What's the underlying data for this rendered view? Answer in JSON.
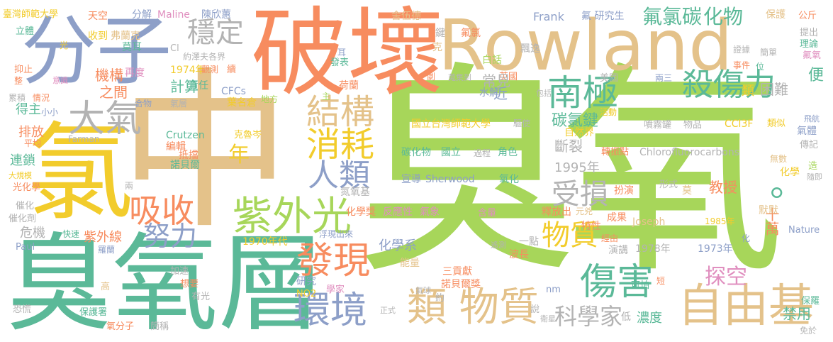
{
  "colors": {
    "green": "#a7d65a",
    "teal": "#5bb998",
    "orange": "#f78c5f",
    "tan": "#e4c28a",
    "blue": "#8d9fc8",
    "pink": "#e08fbf",
    "yellow": "#f2cc2c",
    "gray": "#b3b3b3"
  },
  "words": [
    {
      "text": "臭氧",
      "color": "green"
    },
    {
      "text": "中",
      "color": "tan"
    },
    {
      "text": "臭氧層",
      "color": "teal"
    },
    {
      "text": "氯",
      "color": "yellow"
    },
    {
      "text": "破壞",
      "color": "orange"
    },
    {
      "text": "Rowland",
      "color": "tan"
    },
    {
      "text": "分子",
      "color": "blue"
    },
    {
      "text": "自由基",
      "color": "tan"
    },
    {
      "text": "類 物質",
      "color": "tan"
    },
    {
      "text": "紫外光",
      "color": "green"
    },
    {
      "text": "大氣",
      "color": "gray"
    },
    {
      "text": "發現",
      "color": "orange"
    },
    {
      "text": "環境",
      "color": "blue"
    },
    {
      "text": "傷害",
      "color": "teal"
    },
    {
      "text": "南極",
      "color": "teal"
    },
    {
      "text": "殺傷力",
      "color": "teal"
    },
    {
      "text": "消耗",
      "color": "yellow"
    },
    {
      "text": "結構",
      "color": "tan"
    },
    {
      "text": "人類",
      "color": "blue"
    },
    {
      "text": "吸收",
      "color": "orange"
    },
    {
      "text": "努力",
      "color": "blue"
    },
    {
      "text": "穩定",
      "color": "gray"
    },
    {
      "text": "氟氯碳",
      "color": "teal"
    },
    {
      "text": "化物",
      "color": "teal"
    },
    {
      "text": "受損",
      "color": "gray"
    },
    {
      "text": "物質",
      "color": "yellow"
    },
    {
      "text": "探空",
      "color": "pink"
    },
    {
      "text": "科學家",
      "color": "gray"
    },
    {
      "text": "年",
      "color": "yellow"
    },
    {
      "text": "。",
      "color": "teal"
    },
    {
      "text": "十萬",
      "color": "orange"
    },
    {
      "text": "臺灣師範大學",
      "color": "yellow"
    },
    {
      "text": "天空",
      "color": "orange"
    },
    {
      "text": "分解",
      "color": "blue"
    },
    {
      "text": "Maline",
      "color": "pink"
    },
    {
      "text": "陳欣蕙",
      "color": "blue"
    },
    {
      "text": "舍伍德",
      "color": "tan"
    },
    {
      "text": "Frank",
      "color": "blue"
    },
    {
      "text": "氟 研究生",
      "color": "blue"
    },
    {
      "text": "保護",
      "color": "tan"
    },
    {
      "text": "公斤",
      "color": "orange"
    },
    {
      "text": "收到",
      "color": "yellow"
    },
    {
      "text": "弗蘭克",
      "color": "tan"
    },
    {
      "text": "莫耳",
      "color": "teal"
    },
    {
      "text": "Cl",
      "color": "gray"
    },
    {
      "text": "約澤夫各界",
      "color": "gray"
    },
    {
      "text": "耳",
      "color": "blue"
    },
    {
      "text": "鍵",
      "color": "gray"
    },
    {
      "text": "氟氯",
      "color": "orange"
    },
    {
      "text": "白話",
      "color": "green"
    },
    {
      "text": "飄逸",
      "color": "gray"
    },
    {
      "text": "提出",
      "color": "gray"
    },
    {
      "text": "理論",
      "color": "teal"
    },
    {
      "text": "證據",
      "color": "gray"
    },
    {
      "text": "簡單",
      "color": "gray"
    },
    {
      "text": "氟氧",
      "color": "pink"
    },
    {
      "text": "事件",
      "color": "orange"
    },
    {
      "text": "位",
      "color": "teal"
    },
    {
      "text": "1974年",
      "color": "yellow"
    },
    {
      "text": "觀測",
      "color": "orange"
    },
    {
      "text": "機構",
      "color": "orange"
    },
    {
      "text": "責任",
      "color": "teal"
    },
    {
      "text": "再度",
      "color": "pink"
    },
    {
      "text": "計算",
      "color": "teal"
    },
    {
      "text": "之間",
      "color": "orange"
    },
    {
      "text": "CFCs",
      "color": "blue"
    },
    {
      "text": "葉名倉",
      "color": "yellow"
    },
    {
      "text": "地方",
      "color": "green"
    },
    {
      "text": "荷蘭",
      "color": "orange"
    },
    {
      "text": "英國",
      "color": "orange"
    },
    {
      "text": "美國",
      "color": "gray"
    },
    {
      "text": "兩三",
      "color": "blue"
    },
    {
      "text": "常見",
      "color": "gray"
    },
    {
      "text": "近",
      "color": "blue"
    },
    {
      "text": "水解",
      "color": "blue"
    },
    {
      "text": "碳氯鍵",
      "color": "teal"
    },
    {
      "text": "類",
      "color": "yellow"
    },
    {
      "text": "困難",
      "color": "gray"
    },
    {
      "text": "便",
      "color": "teal"
    },
    {
      "text": "國立台灣師範大學",
      "color": "yellow"
    },
    {
      "text": "驅使",
      "color": "gray"
    },
    {
      "text": "自然界",
      "color": "yellow"
    },
    {
      "text": "活動",
      "color": "yellow"
    },
    {
      "text": "噴霧罐",
      "color": "gray"
    },
    {
      "text": "物品",
      "color": "gray"
    },
    {
      "text": "CCl3F",
      "color": "yellow"
    },
    {
      "text": "類似",
      "color": "yellow"
    },
    {
      "text": "氣體",
      "color": "blue"
    },
    {
      "text": "傳記",
      "color": "gray"
    },
    {
      "text": "飛航",
      "color": "blue"
    },
    {
      "text": "碳化物",
      "color": "teal"
    },
    {
      "text": "國立",
      "color": "teal"
    },
    {
      "text": "過程",
      "color": "gray"
    },
    {
      "text": "角色",
      "color": "teal"
    },
    {
      "text": "斷裂",
      "color": "gray"
    },
    {
      "text": "轉振點",
      "color": "orange"
    },
    {
      "text": "Chlorofluorocarbons",
      "color": "gray"
    },
    {
      "text": "宣導",
      "color": "blue"
    },
    {
      "text": "Sherwood",
      "color": "blue"
    },
    {
      "text": "氧化",
      "color": "teal"
    },
    {
      "text": "1995年",
      "color": "gray"
    },
    {
      "text": "無數",
      "color": "tan"
    },
    {
      "text": "造",
      "color": "green"
    },
    {
      "text": "隨即",
      "color": "gray"
    },
    {
      "text": "化學",
      "color": "yellow"
    },
    {
      "text": "教授",
      "color": "orange"
    },
    {
      "text": "默默",
      "color": "tan"
    },
    {
      "text": "扮演",
      "color": "orange"
    },
    {
      "text": "形式",
      "color": "gray"
    },
    {
      "text": "莫",
      "color": "tan"
    },
    {
      "text": "化學獎",
      "color": "orange"
    },
    {
      "text": "反應性",
      "color": "pink"
    },
    {
      "text": "氣象",
      "color": "pink"
    },
    {
      "text": "含量",
      "color": "pink"
    },
    {
      "text": "釋放出",
      "color": "orange"
    },
    {
      "text": "元兇",
      "color": "tan"
    },
    {
      "text": "成果",
      "color": "orange"
    },
    {
      "text": "特性",
      "color": "orange"
    },
    {
      "text": "Joseph",
      "color": "tan"
    },
    {
      "text": "1985年",
      "color": "yellow"
    },
    {
      "text": "Nature",
      "color": "blue"
    },
    {
      "text": "化",
      "color": "blue"
    },
    {
      "text": "氮氧基",
      "color": "gray"
    },
    {
      "text": "浮現出來",
      "color": "blue"
    },
    {
      "text": "化學系",
      "color": "blue"
    },
    {
      "text": "1970年代",
      "color": "yellow"
    },
    {
      "text": "遙測",
      "color": "gray"
    },
    {
      "text": "一點",
      "color": "gray"
    },
    {
      "text": "波長",
      "color": "orange"
    },
    {
      "text": "經由",
      "color": "orange"
    },
    {
      "text": "演講",
      "color": "gray"
    },
    {
      "text": "1978年",
      "color": "gray"
    },
    {
      "text": "1973年",
      "color": "blue"
    },
    {
      "text": "研究",
      "color": "blue"
    },
    {
      "text": "能量",
      "color": "tan"
    },
    {
      "text": "三貢獻",
      "color": "orange"
    },
    {
      "text": "諾貝爾獎",
      "color": "orange"
    },
    {
      "text": "NO2",
      "color": "yellow"
    },
    {
      "text": "學家",
      "color": "pink"
    },
    {
      "text": "氣球",
      "color": "gray"
    },
    {
      "text": "約",
      "color": "gray"
    },
    {
      "text": "nm",
      "color": "blue"
    },
    {
      "text": "可怕",
      "color": "teal"
    },
    {
      "text": "短",
      "color": "orange"
    },
    {
      "text": "正式",
      "color": "gray"
    },
    {
      "text": "說",
      "color": "gray"
    },
    {
      "text": "衛星",
      "color": "gray"
    },
    {
      "text": "低",
      "color": "gray"
    },
    {
      "text": "濃度",
      "color": "teal"
    },
    {
      "text": "禁用",
      "color": "teal"
    },
    {
      "text": "保羅",
      "color": "teal"
    },
    {
      "text": "免於",
      "color": "gray"
    },
    {
      "text": "克魯岑",
      "color": "yellow"
    },
    {
      "text": "Crutzen",
      "color": "teal"
    },
    {
      "text": "編輯",
      "color": "orange"
    },
    {
      "text": "抵擋",
      "color": "orange"
    },
    {
      "text": "諾貝爾",
      "color": "teal"
    },
    {
      "text": "Farman",
      "color": "gray"
    },
    {
      "text": "立體",
      "color": "teal"
    },
    {
      "text": "光",
      "color": "yellow"
    },
    {
      "text": "抑止",
      "color": "orange"
    },
    {
      "text": "整",
      "color": "orange"
    },
    {
      "text": "意識",
      "color": "pink"
    },
    {
      "text": "累積",
      "color": "gray"
    },
    {
      "text": "情況",
      "color": "orange"
    },
    {
      "text": "得主",
      "color": "teal"
    },
    {
      "text": "小小",
      "color": "blue"
    },
    {
      "text": "合物",
      "color": "blue"
    },
    {
      "text": "氣層",
      "color": "gray"
    },
    {
      "text": "排放",
      "color": "orange"
    },
    {
      "text": "平均",
      "color": "orange"
    },
    {
      "text": "連鎖",
      "color": "teal"
    },
    {
      "text": "大規模",
      "color": "yellow"
    },
    {
      "text": "光化學",
      "color": "orange"
    },
    {
      "text": "兩",
      "color": "gray"
    },
    {
      "text": "催化",
      "color": "gray"
    },
    {
      "text": "催化劑",
      "color": "gray"
    },
    {
      "text": "危機",
      "color": "gray"
    },
    {
      "text": "快速",
      "color": "teal"
    },
    {
      "text": "紫外線",
      "color": "orange"
    },
    {
      "text": "羅蘭",
      "color": "blue"
    },
    {
      "text": "Paul",
      "color": "blue"
    },
    {
      "text": "加速",
      "color": "gray"
    },
    {
      "text": "想要",
      "color": "orange"
    },
    {
      "text": "高",
      "color": "tan"
    },
    {
      "text": "有光",
      "color": "gray"
    },
    {
      "text": "恐慌",
      "color": "gray"
    },
    {
      "text": "保護署",
      "color": "teal"
    },
    {
      "text": "氧分子",
      "color": "orange"
    },
    {
      "text": "簡稱",
      "color": "gray"
    },
    {
      "text": "主",
      "color": "green"
    },
    {
      "text": "劇",
      "color": "orange"
    },
    {
      "text": "蒐集到",
      "color": "gray"
    },
    {
      "text": "包括",
      "color": "gray"
    },
    {
      "text": "克",
      "color": "tan"
    },
    {
      "text": "發表",
      "color": "teal"
    },
    {
      "text": "續",
      "color": "orange"
    }
  ]
}
